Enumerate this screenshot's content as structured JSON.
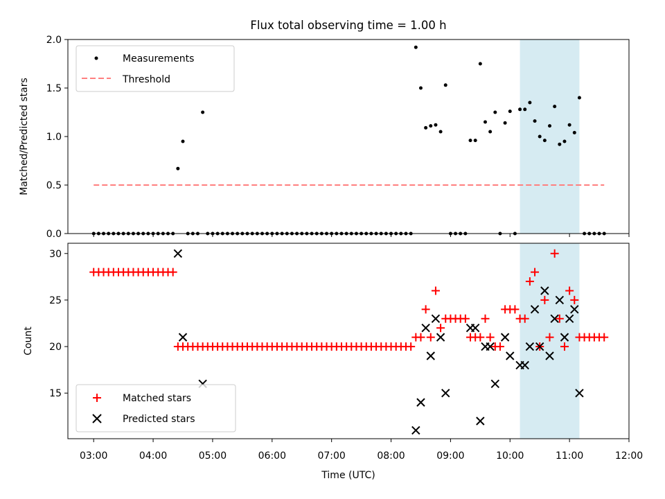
{
  "chart_data": [
    {
      "type": "scatter",
      "title": "Flux total observing time = 1.00 h",
      "ylabel": "Matched/Predicted stars",
      "xlabel": "",
      "xlim": [
        "02:34",
        "12:00"
      ],
      "ylim": [
        0,
        2.0
      ],
      "y_ticks": [
        "0.0",
        "0.5",
        "1.0",
        "1.5",
        "2.0"
      ],
      "legend_position": "upper-left",
      "highlight_span": {
        "from": "10:10",
        "to": "11:10",
        "color": "#add8e6"
      },
      "series": [
        {
          "name": "Measurements",
          "color": "#000000",
          "marker": "dot",
          "points": [
            [
              "03:00",
              0
            ],
            [
              "03:05",
              0
            ],
            [
              "03:10",
              0
            ],
            [
              "03:15",
              0
            ],
            [
              "03:20",
              0
            ],
            [
              "03:25",
              0
            ],
            [
              "03:30",
              0
            ],
            [
              "03:35",
              0
            ],
            [
              "03:40",
              0
            ],
            [
              "03:45",
              0
            ],
            [
              "03:50",
              0
            ],
            [
              "03:55",
              0
            ],
            [
              "04:00",
              0
            ],
            [
              "04:05",
              0
            ],
            [
              "04:10",
              0
            ],
            [
              "04:15",
              0
            ],
            [
              "04:20",
              0
            ],
            [
              "04:25",
              0.67
            ],
            [
              "04:30",
              0.95
            ],
            [
              "04:35",
              0
            ],
            [
              "04:40",
              0
            ],
            [
              "04:45",
              0
            ],
            [
              "04:50",
              1.25
            ],
            [
              "04:55",
              0
            ],
            [
              "05:00",
              0
            ],
            [
              "05:05",
              0
            ],
            [
              "05:10",
              0
            ],
            [
              "05:15",
              0
            ],
            [
              "05:20",
              0
            ],
            [
              "05:25",
              0
            ],
            [
              "05:30",
              0
            ],
            [
              "05:35",
              0
            ],
            [
              "05:40",
              0
            ],
            [
              "05:45",
              0
            ],
            [
              "05:50",
              0
            ],
            [
              "05:55",
              0
            ],
            [
              "06:00",
              0
            ],
            [
              "06:05",
              0
            ],
            [
              "06:10",
              0
            ],
            [
              "06:15",
              0
            ],
            [
              "06:20",
              0
            ],
            [
              "06:25",
              0
            ],
            [
              "06:30",
              0
            ],
            [
              "06:35",
              0
            ],
            [
              "06:40",
              0
            ],
            [
              "06:45",
              0
            ],
            [
              "06:50",
              0
            ],
            [
              "06:55",
              0
            ],
            [
              "07:00",
              0
            ],
            [
              "07:05",
              0
            ],
            [
              "07:10",
              0
            ],
            [
              "07:15",
              0
            ],
            [
              "07:20",
              0
            ],
            [
              "07:25",
              0
            ],
            [
              "07:30",
              0
            ],
            [
              "07:35",
              0
            ],
            [
              "07:40",
              0
            ],
            [
              "07:45",
              0
            ],
            [
              "07:50",
              0
            ],
            [
              "07:55",
              0
            ],
            [
              "08:00",
              0
            ],
            [
              "08:05",
              0
            ],
            [
              "08:10",
              0
            ],
            [
              "08:15",
              0
            ],
            [
              "08:20",
              0
            ],
            [
              "08:25",
              1.92
            ],
            [
              "08:30",
              1.5
            ],
            [
              "08:35",
              1.09
            ],
            [
              "08:40",
              1.11
            ],
            [
              "08:45",
              1.12
            ],
            [
              "08:50",
              1.05
            ],
            [
              "08:55",
              1.53
            ],
            [
              "09:00",
              0
            ],
            [
              "09:05",
              0
            ],
            [
              "09:10",
              0
            ],
            [
              "09:15",
              0
            ],
            [
              "09:20",
              0.96
            ],
            [
              "09:25",
              0.96
            ],
            [
              "09:30",
              1.75
            ],
            [
              "09:35",
              1.15
            ],
            [
              "09:40",
              1.05
            ],
            [
              "09:45",
              1.25
            ],
            [
              "09:50",
              0
            ],
            [
              "09:55",
              1.14
            ],
            [
              "10:00",
              1.26
            ],
            [
              "10:05",
              0
            ],
            [
              "10:10",
              1.28
            ],
            [
              "10:15",
              1.28
            ],
            [
              "10:20",
              1.35
            ],
            [
              "10:25",
              1.16
            ],
            [
              "10:30",
              1.0
            ],
            [
              "10:35",
              0.96
            ],
            [
              "10:40",
              1.11
            ],
            [
              "10:45",
              1.31
            ],
            [
              "10:50",
              0.92
            ],
            [
              "10:55",
              0.95
            ],
            [
              "11:00",
              1.12
            ],
            [
              "11:05",
              1.04
            ],
            [
              "11:10",
              1.4
            ],
            [
              "11:15",
              0
            ],
            [
              "11:20",
              0
            ],
            [
              "11:25",
              0
            ],
            [
              "11:30",
              0
            ],
            [
              "11:35",
              0
            ]
          ]
        },
        {
          "name": "Threshold",
          "color": "#ff7f7f",
          "style": "dashed",
          "points": [
            [
              "03:00",
              0.5
            ],
            [
              "11:35",
              0.5
            ]
          ]
        }
      ]
    },
    {
      "type": "scatter",
      "title": "",
      "xlabel": "Time (UTC)",
      "ylabel": "Count",
      "xlim": [
        "02:34",
        "12:00"
      ],
      "ylim": [
        10.1,
        31.1
      ],
      "x_ticks": [
        "03:00",
        "04:00",
        "05:00",
        "06:00",
        "07:00",
        "08:00",
        "09:00",
        "10:00",
        "11:00",
        "12:00"
      ],
      "y_ticks": [
        "15",
        "20",
        "25",
        "30"
      ],
      "legend_position": "lower-left",
      "highlight_span": {
        "from": "10:10",
        "to": "11:10",
        "color": "#add8e6"
      },
      "series": [
        {
          "name": "Matched stars",
          "color": "#ff0000",
          "marker": "plus",
          "points": [
            [
              "03:00",
              28
            ],
            [
              "03:05",
              28
            ],
            [
              "03:10",
              28
            ],
            [
              "03:15",
              28
            ],
            [
              "03:20",
              28
            ],
            [
              "03:25",
              28
            ],
            [
              "03:30",
              28
            ],
            [
              "03:35",
              28
            ],
            [
              "03:40",
              28
            ],
            [
              "03:45",
              28
            ],
            [
              "03:50",
              28
            ],
            [
              "03:55",
              28
            ],
            [
              "04:00",
              28
            ],
            [
              "04:05",
              28
            ],
            [
              "04:10",
              28
            ],
            [
              "04:15",
              28
            ],
            [
              "04:20",
              28
            ],
            [
              "04:25",
              20
            ],
            [
              "04:30",
              20
            ],
            [
              "04:35",
              20
            ],
            [
              "04:40",
              20
            ],
            [
              "04:45",
              20
            ],
            [
              "04:50",
              20
            ],
            [
              "04:55",
              20
            ],
            [
              "05:00",
              20
            ],
            [
              "05:05",
              20
            ],
            [
              "05:10",
              20
            ],
            [
              "05:15",
              20
            ],
            [
              "05:20",
              20
            ],
            [
              "05:25",
              20
            ],
            [
              "05:30",
              20
            ],
            [
              "05:35",
              20
            ],
            [
              "05:40",
              20
            ],
            [
              "05:45",
              20
            ],
            [
              "05:50",
              20
            ],
            [
              "05:55",
              20
            ],
            [
              "06:00",
              20
            ],
            [
              "06:05",
              20
            ],
            [
              "06:10",
              20
            ],
            [
              "06:15",
              20
            ],
            [
              "06:20",
              20
            ],
            [
              "06:25",
              20
            ],
            [
              "06:30",
              20
            ],
            [
              "06:35",
              20
            ],
            [
              "06:40",
              20
            ],
            [
              "06:45",
              20
            ],
            [
              "06:50",
              20
            ],
            [
              "06:55",
              20
            ],
            [
              "07:00",
              20
            ],
            [
              "07:05",
              20
            ],
            [
              "07:10",
              20
            ],
            [
              "07:15",
              20
            ],
            [
              "07:20",
              20
            ],
            [
              "07:25",
              20
            ],
            [
              "07:30",
              20
            ],
            [
              "07:35",
              20
            ],
            [
              "07:40",
              20
            ],
            [
              "07:45",
              20
            ],
            [
              "07:50",
              20
            ],
            [
              "07:55",
              20
            ],
            [
              "08:00",
              20
            ],
            [
              "08:05",
              20
            ],
            [
              "08:10",
              20
            ],
            [
              "08:15",
              20
            ],
            [
              "08:20",
              20
            ],
            [
              "08:25",
              21
            ],
            [
              "08:30",
              21
            ],
            [
              "08:35",
              24
            ],
            [
              "08:40",
              21
            ],
            [
              "08:45",
              26
            ],
            [
              "08:50",
              22
            ],
            [
              "08:55",
              23
            ],
            [
              "09:00",
              23
            ],
            [
              "09:05",
              23
            ],
            [
              "09:10",
              23
            ],
            [
              "09:15",
              23
            ],
            [
              "09:20",
              21
            ],
            [
              "09:25",
              21
            ],
            [
              "09:30",
              21
            ],
            [
              "09:35",
              23
            ],
            [
              "09:40",
              21
            ],
            [
              "09:45",
              20
            ],
            [
              "09:50",
              20
            ],
            [
              "09:55",
              24
            ],
            [
              "10:00",
              24
            ],
            [
              "10:05",
              24
            ],
            [
              "10:10",
              23
            ],
            [
              "10:15",
              23
            ],
            [
              "10:20",
              27
            ],
            [
              "10:25",
              28
            ],
            [
              "10:30",
              20
            ],
            [
              "10:35",
              25
            ],
            [
              "10:40",
              21
            ],
            [
              "10:45",
              30
            ],
            [
              "10:50",
              23
            ],
            [
              "10:55",
              20
            ],
            [
              "11:00",
              26
            ],
            [
              "11:05",
              25
            ],
            [
              "11:10",
              21
            ],
            [
              "11:15",
              21
            ],
            [
              "11:20",
              21
            ],
            [
              "11:25",
              21
            ],
            [
              "11:30",
              21
            ],
            [
              "11:35",
              21
            ]
          ]
        },
        {
          "name": "Predicted stars",
          "color": "#000000",
          "marker": "x",
          "points": [
            [
              "04:25",
              30
            ],
            [
              "04:30",
              21
            ],
            [
              "04:50",
              16
            ],
            [
              "08:25",
              11
            ],
            [
              "08:30",
              14
            ],
            [
              "08:35",
              22
            ],
            [
              "08:40",
              19
            ],
            [
              "08:45",
              23
            ],
            [
              "08:50",
              21
            ],
            [
              "08:55",
              15
            ],
            [
              "09:20",
              22
            ],
            [
              "09:25",
              22
            ],
            [
              "09:30",
              12
            ],
            [
              "09:35",
              20
            ],
            [
              "09:40",
              20
            ],
            [
              "09:45",
              16
            ],
            [
              "09:55",
              21
            ],
            [
              "10:00",
              19
            ],
            [
              "10:10",
              18
            ],
            [
              "10:15",
              18
            ],
            [
              "10:20",
              20
            ],
            [
              "10:25",
              24
            ],
            [
              "10:30",
              20
            ],
            [
              "10:35",
              26
            ],
            [
              "10:40",
              19
            ],
            [
              "10:45",
              23
            ],
            [
              "10:50",
              25
            ],
            [
              "10:55",
              21
            ],
            [
              "11:00",
              23
            ],
            [
              "11:05",
              24
            ],
            [
              "11:10",
              15
            ]
          ]
        }
      ]
    }
  ]
}
